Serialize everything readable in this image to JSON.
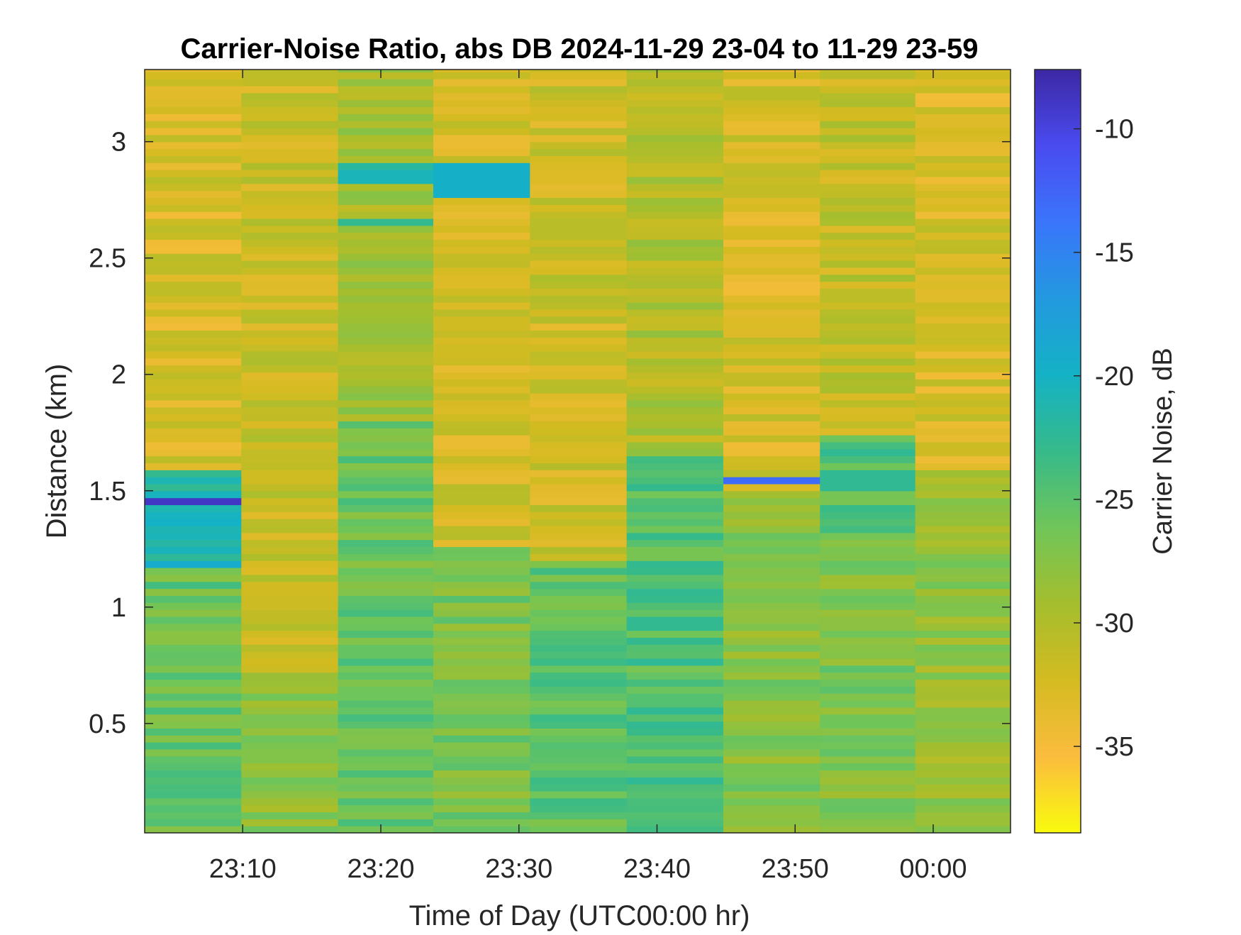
{
  "chart_data": {
    "type": "heatmap",
    "title": "Carrier-Noise Ratio, abs DB 2024-11-29 23-04 to 11-29 23-59",
    "xlabel": "Time of Day (UTC00:00 hr)",
    "ylabel": "Distance (km)",
    "colorbar_label": "Carrier Noise, dB",
    "x_ticks": [
      "23:10",
      "23:20",
      "23:30",
      "23:40",
      "23:50",
      "00:00"
    ],
    "x_tick_minutes": [
      10,
      20,
      30,
      40,
      50,
      60
    ],
    "x_range_minutes": [
      2.9,
      65.6
    ],
    "y_ticks": [
      "0.5",
      "1",
      "1.5",
      "2",
      "2.5",
      "3"
    ],
    "y_tick_values": [
      0.5,
      1,
      1.5,
      2,
      2.5,
      3
    ],
    "ylim": [
      0.03,
      3.31
    ],
    "colorbar_ticks": [
      "-10",
      "-15",
      "-20",
      "-25",
      "-30",
      "-35"
    ],
    "colorbar_tick_values": [
      -10,
      -15,
      -20,
      -25,
      -30,
      -35
    ],
    "clim": [
      -38.5,
      -7.6
    ],
    "scan_start_minutes": [
      2.9,
      9.9,
      16.9,
      23.8,
      30.8,
      37.8,
      44.8,
      51.8,
      58.7
    ],
    "scan_end_minute": 65.6,
    "colormap": [
      "#f9fb0e",
      "#fbbc3e",
      "#d4bb21",
      "#a5be2d",
      "#70c559",
      "#36ba8a",
      "#14b2c5",
      "#2399df",
      "#3a75fb",
      "#4a4bf0",
      "#3c28a4"
    ],
    "typical_bands": [
      {
        "scan": 1,
        "from": 0.03,
        "to": 1.18,
        "level": -25.8
      },
      {
        "scan": 1,
        "from": 1.18,
        "to": 1.6,
        "level": -20.8
      },
      {
        "scan": 1,
        "from": 1.6,
        "to": 3.31,
        "level": -32.6
      },
      {
        "scan": 2,
        "from": 0.03,
        "to": 0.72,
        "level": -27.8
      },
      {
        "scan": 2,
        "from": 0.72,
        "to": 3.31,
        "level": -31.5
      },
      {
        "scan": 3,
        "from": 0.03,
        "to": 1.8,
        "level": -25.8
      },
      {
        "scan": 3,
        "from": 1.8,
        "to": 3.31,
        "level": -29.2
      },
      {
        "scan": 4,
        "from": 0.03,
        "to": 1.25,
        "level": -26.8
      },
      {
        "scan": 4,
        "from": 1.25,
        "to": 3.31,
        "level": -32.2
      },
      {
        "scan": 5,
        "from": 0.03,
        "to": 1.2,
        "level": -25.3
      },
      {
        "scan": 5,
        "from": 1.2,
        "to": 3.31,
        "level": -31.8
      },
      {
        "scan": 6,
        "from": 0.03,
        "to": 1.65,
        "level": -24.6
      },
      {
        "scan": 6,
        "from": 1.65,
        "to": 3.31,
        "level": -30.1
      },
      {
        "scan": 7,
        "from": 0.03,
        "to": 1.5,
        "level": -27.4
      },
      {
        "scan": 7,
        "from": 1.5,
        "to": 3.31,
        "level": -32.6
      },
      {
        "scan": 8,
        "from": 0.03,
        "to": 1.3,
        "level": -27.0
      },
      {
        "scan": 8,
        "from": 1.3,
        "to": 1.75,
        "level": -24.6
      },
      {
        "scan": 8,
        "from": 1.75,
        "to": 3.31,
        "level": -31.2
      },
      {
        "scan": 9,
        "from": 0.03,
        "to": 1.6,
        "level": -28.2
      },
      {
        "scan": 9,
        "from": 1.6,
        "to": 3.31,
        "level": -32.6
      }
    ],
    "highlighted_gates": [
      {
        "scan": 1,
        "from": 1.43,
        "to": 1.46,
        "level": -8.9
      },
      {
        "scan": 1,
        "from": 1.46,
        "to": 1.48,
        "level": -18.0
      },
      {
        "scan": 3,
        "from": 2.82,
        "to": 2.88,
        "level": -20.6
      },
      {
        "scan": 3,
        "from": 2.88,
        "to": 2.9,
        "level": -21.9
      },
      {
        "scan": 3,
        "from": 2.64,
        "to": 2.67,
        "level": -22.8
      },
      {
        "scan": 4,
        "from": 2.77,
        "to": 2.91,
        "level": -19.6
      },
      {
        "scan": 7,
        "from": 1.52,
        "to": 1.57,
        "level": -13.1
      },
      {
        "scan": 8,
        "from": 1.51,
        "to": 1.58,
        "level": -22.6
      },
      {
        "scan": 9,
        "from": 2.21,
        "to": 2.23,
        "level": -38.0
      }
    ]
  }
}
